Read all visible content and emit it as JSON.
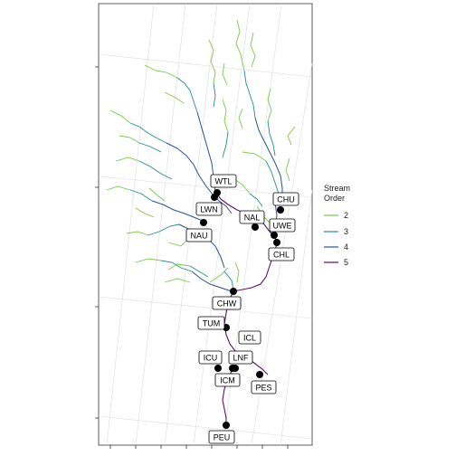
{
  "legend": {
    "title_line1": "Stream",
    "title_line2": "Order",
    "items": [
      {
        "label": "2",
        "color": "#7bc943"
      },
      {
        "label": "3",
        "color": "#1f8f8a"
      },
      {
        "label": "4",
        "color": "#2b4f8c"
      },
      {
        "label": "5",
        "color": "#5a0f6e"
      }
    ]
  },
  "sites": [
    "WTL",
    "LWN",
    "NAL",
    "NAU",
    "CHU",
    "UWE",
    "CHL",
    "CHW",
    "TUM",
    "ICL",
    "ICU",
    "LNF",
    "ICM",
    "PES",
    "PEU"
  ]
}
